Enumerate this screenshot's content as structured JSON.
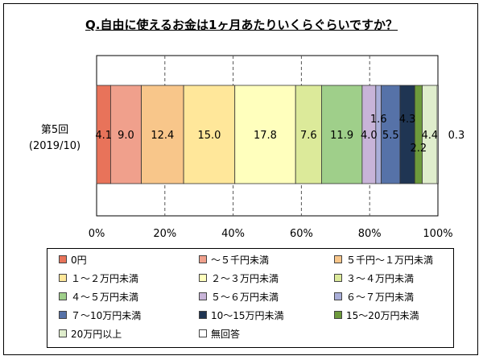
{
  "chart_data": {
    "type": "bar",
    "orientation": "horizontal",
    "stacked": true,
    "percent_stacked": true,
    "title": "Q.自由に使えるお金は1ヶ月あたりいくらぐらいですか？",
    "categories": [
      "第5回\n(2019/10)"
    ],
    "category_lines": [
      "第5回",
      "(2019/10)"
    ],
    "x_ticks": [
      "0%",
      "20%",
      "40%",
      "60%",
      "80%",
      "100%"
    ],
    "xlim": [
      0,
      100
    ],
    "grid": "vertical dashed",
    "legend_position": "bottom",
    "series": [
      {
        "name": "0円",
        "values": [
          4.1
        ],
        "color": "#e8735a",
        "label": "4.1"
      },
      {
        "name": "～５千円未満",
        "values": [
          9.0
        ],
        "color": "#f0a08c",
        "label": "9.0"
      },
      {
        "name": "５千円～１万円未満",
        "values": [
          12.4
        ],
        "color": "#f8c68a",
        "label": "12.4"
      },
      {
        "name": "１～２万円未満",
        "values": [
          15.0
        ],
        "color": "#ffe79a",
        "label": "15.0"
      },
      {
        "name": "２～３万円未満",
        "values": [
          17.8
        ],
        "color": "#ffffbd",
        "label": "17.8"
      },
      {
        "name": "３～４万円未満",
        "values": [
          7.6
        ],
        "color": "#dcea9a",
        "label": "7.6"
      },
      {
        "name": "４～５万円未満",
        "values": [
          11.9
        ],
        "color": "#9fcf8a",
        "label": "11.9"
      },
      {
        "name": "５～６万円未満",
        "values": [
          4.0
        ],
        "color": "#c8b4d8",
        "label": "4.0"
      },
      {
        "name": "６～７万円未満",
        "values": [
          1.6
        ],
        "color": "#a9aed8",
        "label": "1.6"
      },
      {
        "name": "７～10万円未満",
        "values": [
          5.5
        ],
        "color": "#5672a8",
        "label": "5.5"
      },
      {
        "name": "10～15万円未満",
        "values": [
          4.3
        ],
        "color": "#1f3553",
        "label": "4.3"
      },
      {
        "name": "15～20万円未満",
        "values": [
          2.2
        ],
        "color": "#6d9a3c",
        "label": "2.2"
      },
      {
        "name": "20万円以上",
        "values": [
          4.4
        ],
        "color": "#dfedcc",
        "label": "4.4"
      },
      {
        "name": "無回答",
        "values": [
          0.3
        ],
        "color": "#ffffff",
        "label": "0.3"
      }
    ]
  }
}
